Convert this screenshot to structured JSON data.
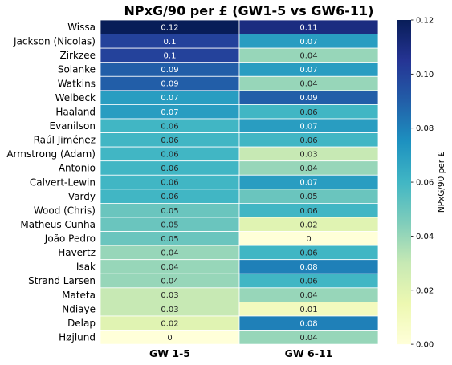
{
  "chart_data": {
    "type": "heatmap",
    "title": "NPxG/90 per £ (GW1-5 vs GW6-11)",
    "columns": [
      "GW 1-5",
      "GW 6-11"
    ],
    "rows": [
      "Wissa",
      "Jackson (Nicolas)",
      "Zirkzee",
      "Solanke",
      "Watkins",
      "Welbeck",
      "Haaland",
      "Evanilson",
      "Raúl Jiménez",
      "Armstrong (Adam)",
      "Antonio",
      "Calvert-Lewin",
      "Vardy",
      "Wood (Chris)",
      "Matheus Cunha",
      "João Pedro",
      "Havertz",
      "Isak",
      "Strand Larsen",
      "Mateta",
      "Ndiaye",
      "Delap",
      "Højlund"
    ],
    "values": [
      [
        0.12,
        0.11
      ],
      [
        0.1,
        0.07
      ],
      [
        0.1,
        0.04
      ],
      [
        0.09,
        0.07
      ],
      [
        0.09,
        0.04
      ],
      [
        0.07,
        0.09
      ],
      [
        0.07,
        0.06
      ],
      [
        0.06,
        0.07
      ],
      [
        0.06,
        0.06
      ],
      [
        0.06,
        0.03
      ],
      [
        0.06,
        0.04
      ],
      [
        0.06,
        0.07
      ],
      [
        0.06,
        0.05
      ],
      [
        0.05,
        0.06
      ],
      [
        0.05,
        0.02
      ],
      [
        0.05,
        0
      ],
      [
        0.04,
        0.06
      ],
      [
        0.04,
        0.08
      ],
      [
        0.04,
        0.06
      ],
      [
        0.03,
        0.04
      ],
      [
        0.03,
        0.01
      ],
      [
        0.02,
        0.08
      ],
      [
        0,
        0.04
      ]
    ],
    "colorbar": {
      "label": "NPxG/90 per £",
      "range": [
        0,
        0.12
      ],
      "ticks": [
        "0.00",
        "0.02",
        "0.04",
        "0.06",
        "0.08",
        "0.10",
        "0.12"
      ],
      "colormap": "YlGnBu"
    }
  }
}
